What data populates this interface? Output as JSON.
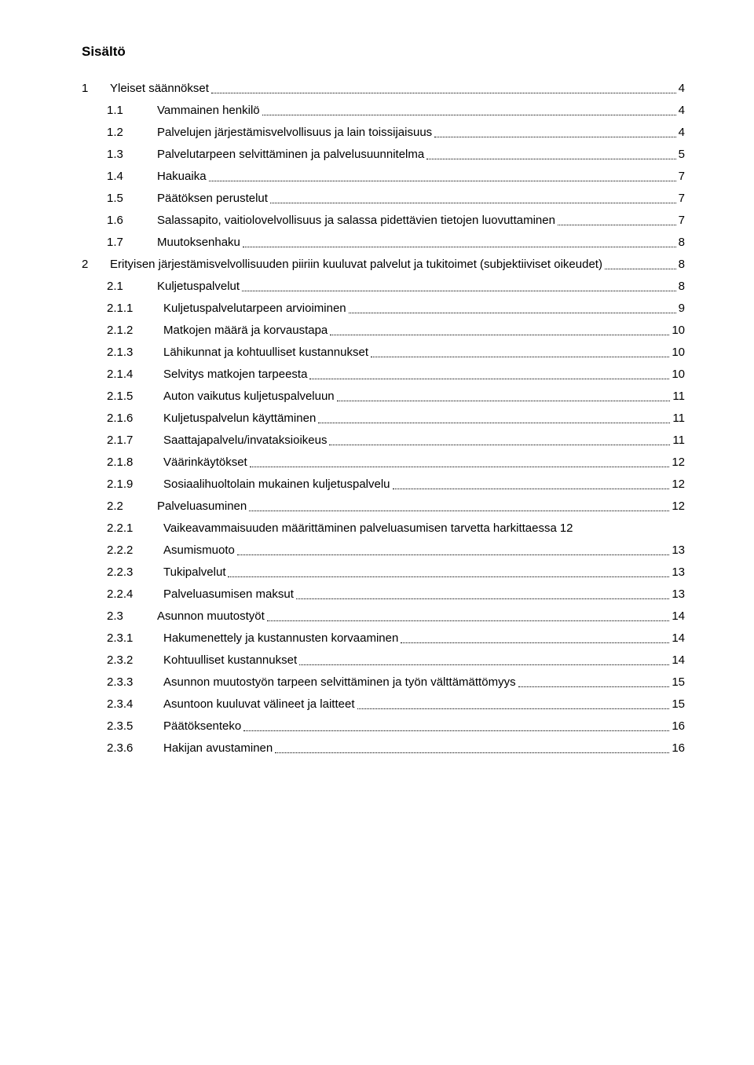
{
  "title": "Sisältö",
  "entries": [
    {
      "level": 1,
      "num": "1",
      "label": "Yleiset säännökset",
      "page": "4"
    },
    {
      "level": 2,
      "num": "1.1",
      "label": "Vammainen henkilö",
      "page": "4"
    },
    {
      "level": 2,
      "num": "1.2",
      "label": "Palvelujen järjestämisvelvollisuus ja lain toissijaisuus",
      "page": "4"
    },
    {
      "level": 2,
      "num": "1.3",
      "label": "Palvelutarpeen selvittäminen ja palvelusuunnitelma",
      "page": "5"
    },
    {
      "level": 2,
      "num": "1.4",
      "label": "Hakuaika",
      "page": "7"
    },
    {
      "level": 2,
      "num": "1.5",
      "label": "Päätöksen perustelut",
      "page": "7"
    },
    {
      "level": 2,
      "num": "1.6",
      "label": "Salassapito, vaitiolovelvollisuus ja salassa pidettävien tietojen luovuttaminen",
      "page": "7"
    },
    {
      "level": 2,
      "num": "1.7",
      "label": "Muutoksenhaku",
      "page": "8"
    },
    {
      "level": 1,
      "num": "2",
      "label": "Erityisen järjestämisvelvollisuuden piiriin kuuluvat palvelut ja tukitoimet (subjektiiviset oikeudet)",
      "page": "8",
      "multiline": true
    },
    {
      "level": 2,
      "num": "2.1",
      "label": "Kuljetuspalvelut",
      "page": "8"
    },
    {
      "level": 3,
      "num": "2.1.1",
      "label": "Kuljetuspalvelutarpeen arvioiminen",
      "page": "9"
    },
    {
      "level": 3,
      "num": "2.1.2",
      "label": "Matkojen määrä ja korvaustapa",
      "page": "10"
    },
    {
      "level": 3,
      "num": "2.1.3",
      "label": "Lähikunnat ja kohtuulliset kustannukset",
      "page": "10"
    },
    {
      "level": 3,
      "num": "2.1.4",
      "label": "Selvitys matkojen tarpeesta",
      "page": "10"
    },
    {
      "level": 3,
      "num": "2.1.5",
      "label": "Auton vaikutus kuljetuspalveluun",
      "page": "11"
    },
    {
      "level": 3,
      "num": "2.1.6",
      "label": "Kuljetuspalvelun käyttäminen",
      "page": "11"
    },
    {
      "level": 3,
      "num": "2.1.7",
      "label": "Saattajapalvelu/invataksioikeus",
      "page": "11"
    },
    {
      "level": 3,
      "num": "2.1.8",
      "label": "Väärinkäytökset",
      "page": "12"
    },
    {
      "level": 3,
      "num": "2.1.9",
      "label": "Sosiaalihuoltolain mukainen kuljetuspalvelu",
      "page": "12"
    },
    {
      "level": 2,
      "num": "2.2",
      "label": "Palveluasuminen",
      "page": "12"
    },
    {
      "level": 3,
      "num": "2.2.1",
      "label": "Vaikeavammaisuuden määrittäminen palveluasumisen tarvetta harkittaessa",
      "page": "12",
      "nodots": true
    },
    {
      "level": 3,
      "num": "2.2.2",
      "label": "Asumismuoto",
      "page": "13"
    },
    {
      "level": 3,
      "num": "2.2.3",
      "label": "Tukipalvelut",
      "page": "13"
    },
    {
      "level": 3,
      "num": "2.2.4",
      "label": "Palveluasumisen maksut",
      "page": "13"
    },
    {
      "level": 2,
      "num": "2.3",
      "label": "Asunnon muutostyöt",
      "page": "14"
    },
    {
      "level": 3,
      "num": "2.3.1",
      "label": "Hakumenettely ja kustannusten korvaaminen",
      "page": "14"
    },
    {
      "level": 3,
      "num": "2.3.2",
      "label": "Kohtuulliset kustannukset",
      "page": "14"
    },
    {
      "level": 3,
      "num": "2.3.3",
      "label": "Asunnon muutostyön tarpeen selvittäminen ja työn välttämättömyys",
      "page": "15"
    },
    {
      "level": 3,
      "num": "2.3.4",
      "label": "Asuntoon kuuluvat välineet ja laitteet",
      "page": "15"
    },
    {
      "level": 3,
      "num": "2.3.5",
      "label": "Päätöksenteko",
      "page": "16"
    },
    {
      "level": 3,
      "num": "2.3.6",
      "label": "Hakijan avustaminen",
      "page": "16"
    }
  ]
}
